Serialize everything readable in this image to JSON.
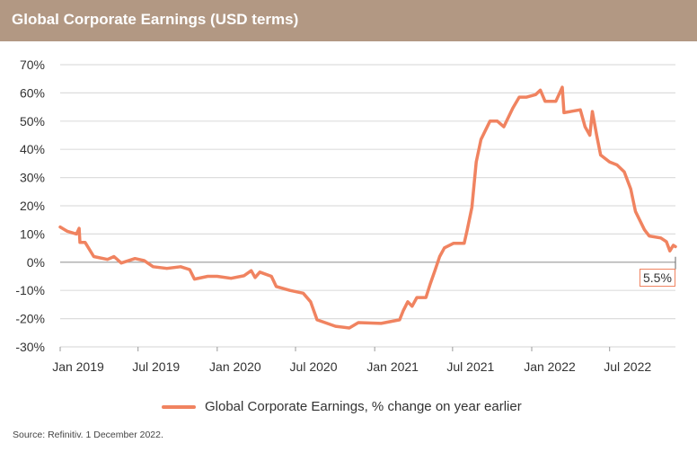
{
  "header": {
    "title": "Global Corporate Earnings (USD terms)"
  },
  "chart_data": {
    "type": "line",
    "title": "Global Corporate Earnings (USD terms)",
    "xlabel": "",
    "ylabel": "",
    "ylim": [
      -30,
      70
    ],
    "xlim": [
      "2019-01-01",
      "2022-12-01"
    ],
    "yticks": [
      "70%",
      "60%",
      "50%",
      "40%",
      "30%",
      "20%",
      "10%",
      "0%",
      "-10%",
      "-20%",
      "-30%"
    ],
    "ytick_values": [
      70,
      60,
      50,
      40,
      30,
      20,
      10,
      0,
      -10,
      -20,
      -30
    ],
    "xticks": [
      {
        "date": "2019-01-01",
        "label": "Jan 2019"
      },
      {
        "date": "2019-07-01",
        "label": "Jul 2019"
      },
      {
        "date": "2020-01-01",
        "label": "Jan 2020"
      },
      {
        "date": "2020-07-01",
        "label": "Jul 2020"
      },
      {
        "date": "2021-01-01",
        "label": "Jan 2021"
      },
      {
        "date": "2021-07-01",
        "label": "Jul 2021"
      },
      {
        "date": "2022-01-01",
        "label": "Jan 2022"
      },
      {
        "date": "2022-07-01",
        "label": "Jul 2022"
      }
    ],
    "grid": true,
    "legend_position": "bottom",
    "series": [
      {
        "name": "Global Corporate Earnings, % change on year earlier",
        "color": "#f08360",
        "x": [
          "2019-01-01",
          "2019-01-17",
          "2019-02-08",
          "2019-02-14",
          "2019-02-16",
          "2019-02-28",
          "2019-03-20",
          "2019-04-21",
          "2019-05-06",
          "2019-05-23",
          "2019-06-24",
          "2019-07-15",
          "2019-08-05",
          "2019-09-06",
          "2019-10-08",
          "2019-10-29",
          "2019-11-09",
          "2019-12-10",
          "2020-01-01",
          "2020-02-02",
          "2020-03-03",
          "2020-03-20",
          "2020-03-29",
          "2020-04-09",
          "2020-05-06",
          "2020-05-17",
          "2020-06-18",
          "2020-07-19",
          "2020-08-05",
          "2020-08-20",
          "2020-10-02",
          "2020-11-03",
          "2020-11-24",
          "2021-01-16",
          "2021-02-28",
          "2021-03-08",
          "2021-03-19",
          "2021-03-29",
          "2021-04-09",
          "2021-04-30",
          "2021-05-10",
          "2021-05-21",
          "2021-06-01",
          "2021-06-12",
          "2021-07-03",
          "2021-07-28",
          "2021-08-04",
          "2021-08-15",
          "2021-08-25",
          "2021-09-05",
          "2021-09-26",
          "2021-10-13",
          "2021-10-28",
          "2021-11-18",
          "2021-12-03",
          "2021-12-20",
          "2022-01-10",
          "2022-01-21",
          "2022-02-01",
          "2022-02-26",
          "2022-03-13",
          "2022-03-17",
          "2022-04-24",
          "2022-05-05",
          "2022-05-16",
          "2022-05-22",
          "2022-06-01",
          "2022-06-10",
          "2022-07-01",
          "2022-07-18",
          "2022-08-04",
          "2022-08-19",
          "2022-08-30",
          "2022-09-20",
          "2022-10-01",
          "2022-10-28",
          "2022-11-10",
          "2022-11-18",
          "2022-11-26",
          "2022-12-01"
        ],
        "y": [
          12.5,
          11,
          10,
          12,
          7,
          7,
          2,
          1,
          2,
          -0.3,
          1.3,
          0.6,
          -1.6,
          -2.2,
          -1.6,
          -2.6,
          -6,
          -5,
          -5,
          -5.7,
          -4.8,
          -3,
          -5.4,
          -3.5,
          -5,
          -8.6,
          -10,
          -11,
          -14,
          -20.4,
          -22.7,
          -23.3,
          -21.4,
          -21.7,
          -20.4,
          -17.3,
          -14,
          -15.6,
          -12.5,
          -12.5,
          -7.7,
          -3,
          2,
          5.1,
          6.7,
          6.7,
          11.5,
          19.5,
          35.5,
          43.5,
          50,
          50,
          48,
          54.6,
          58.5,
          58.5,
          59.4,
          61,
          57,
          57,
          62,
          53,
          54,
          48,
          45,
          53.4,
          45,
          38,
          35.5,
          34.5,
          32,
          26,
          18,
          11.5,
          9.3,
          8.6,
          7.3,
          4,
          6,
          5.5
        ]
      }
    ],
    "annotations": [
      {
        "date": "2022-12-01",
        "value": 5.5,
        "text": "5.5%"
      }
    ]
  },
  "footer": {
    "source": "Source: Refinitiv. 1 December 2022."
  }
}
